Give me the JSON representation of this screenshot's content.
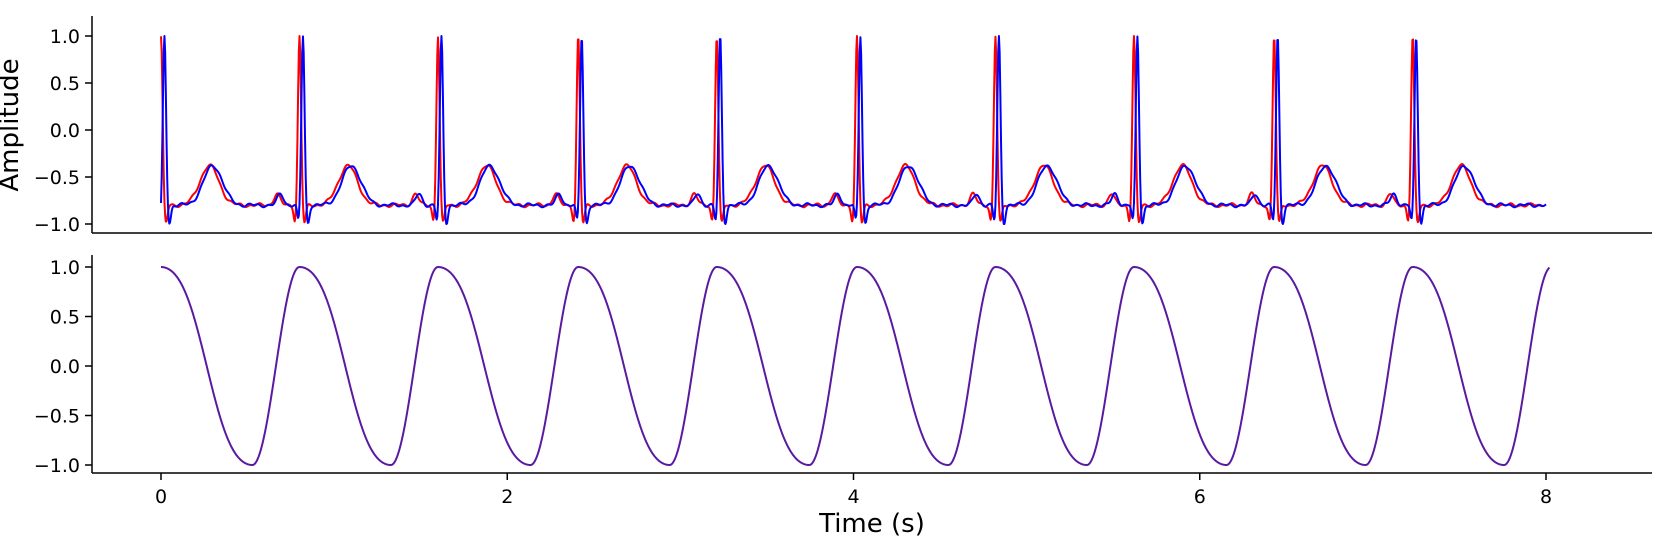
{
  "chart_data": [
    {
      "type": "line",
      "panel": "top",
      "ylabel": "Amplitude",
      "xlabel": "",
      "xlim": [
        -0.4,
        8.6
      ],
      "ylim": [
        -1.1,
        1.2
      ],
      "yticks": [
        -1.0,
        -0.5,
        0.0,
        0.5,
        1.0
      ],
      "ytick_labels": [
        "−1.0",
        "−0.5",
        "0.0",
        "0.5",
        "1.0"
      ],
      "grid": false,
      "series": [
        {
          "color": "#ff0000",
          "signal": "ecg",
          "peak_times": [
            0.0,
            0.8,
            1.6,
            2.41,
            3.21,
            4.02,
            4.82,
            5.62,
            6.43,
            7.23
          ],
          "offset": 0.0,
          "x_range": [
            0.0,
            7.98
          ]
        },
        {
          "color": "#0000ff",
          "signal": "ecg",
          "peak_times": [
            0.0,
            0.8,
            1.6,
            2.41,
            3.21,
            4.02,
            4.82,
            5.62,
            6.43,
            7.23
          ],
          "offset": 0.02,
          "x_range": [
            0.0,
            8.0
          ]
        }
      ]
    },
    {
      "type": "line",
      "panel": "bottom",
      "xlabel": "Time (s)",
      "ylabel": "",
      "xlim": [
        -0.4,
        8.6
      ],
      "ylim": [
        -1.1,
        1.1
      ],
      "xticks": [
        0,
        2,
        4,
        6,
        8
      ],
      "xtick_labels": [
        "0",
        "2",
        "4",
        "6",
        "8"
      ],
      "yticks": [
        -1.0,
        -0.5,
        0.0,
        0.5,
        1.0
      ],
      "ytick_labels": [
        "−1.0",
        "−0.5",
        "0.0",
        "0.5",
        "1.0"
      ],
      "grid": false,
      "series": [
        {
          "color": "#5a1aa0",
          "signal": "smooth-wave",
          "peak_times": [
            0.0,
            0.8,
            1.6,
            2.41,
            3.21,
            4.02,
            4.82,
            5.62,
            6.43,
            7.23,
            8.03
          ],
          "x_range": [
            0.0,
            8.02
          ]
        }
      ]
    }
  ]
}
